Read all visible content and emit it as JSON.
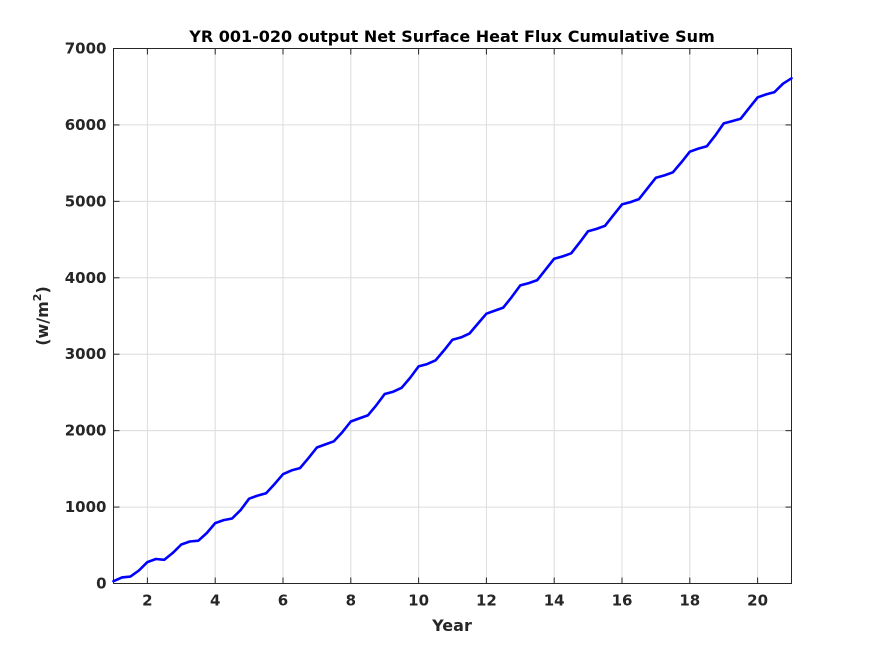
{
  "chart_data": {
    "type": "line",
    "title": "YR 001-020 output Net Surface Heat Flux  Cumulative Sum",
    "xlabel": "Year",
    "ylabel_base": "(w/m",
    "ylabel_sup": "2",
    "ylabel_close": ")",
    "xlim": [
      1,
      21
    ],
    "ylim": [
      0,
      7000
    ],
    "xticks": [
      2,
      4,
      6,
      8,
      10,
      12,
      14,
      16,
      18,
      20
    ],
    "yticks": [
      0,
      1000,
      2000,
      3000,
      4000,
      5000,
      6000,
      7000
    ],
    "grid": true,
    "series": [
      {
        "color": "#0000ff",
        "x": [
          1.0,
          1.25,
          1.5,
          1.75,
          2.0,
          2.25,
          2.5,
          2.75,
          3.0,
          3.25,
          3.5,
          3.75,
          4.0,
          4.25,
          4.5,
          4.75,
          5.0,
          5.25,
          5.5,
          5.75,
          6.0,
          6.25,
          6.5,
          6.75,
          7.0,
          7.25,
          7.5,
          7.75,
          8.0,
          8.25,
          8.5,
          8.75,
          9.0,
          9.25,
          9.5,
          9.75,
          10.0,
          10.25,
          10.5,
          10.75,
          11.0,
          11.25,
          11.5,
          11.75,
          12.0,
          12.25,
          12.5,
          12.75,
          13.0,
          13.25,
          13.5,
          13.75,
          14.0,
          14.25,
          14.5,
          14.75,
          15.0,
          15.25,
          15.5,
          15.75,
          16.0,
          16.25,
          16.5,
          16.75,
          17.0,
          17.25,
          17.5,
          17.75,
          18.0,
          18.25,
          18.5,
          18.75,
          19.0,
          19.25,
          19.5,
          19.75,
          20.0,
          20.25,
          20.5,
          20.75,
          21.0
        ],
        "y": [
          30,
          80,
          90,
          170,
          280,
          320,
          310,
          400,
          510,
          550,
          560,
          660,
          790,
          830,
          850,
          960,
          1110,
          1150,
          1180,
          1300,
          1430,
          1480,
          1510,
          1640,
          1780,
          1820,
          1860,
          1980,
          2120,
          2160,
          2200,
          2330,
          2480,
          2510,
          2560,
          2690,
          2840,
          2870,
          2920,
          3050,
          3190,
          3220,
          3270,
          3400,
          3530,
          3570,
          3610,
          3750,
          3900,
          3930,
          3970,
          4110,
          4250,
          4280,
          4320,
          4460,
          4610,
          4640,
          4680,
          4820,
          4960,
          4990,
          5030,
          5170,
          5310,
          5340,
          5380,
          5510,
          5650,
          5690,
          5720,
          5860,
          6020,
          6050,
          6080,
          6220,
          6360,
          6400,
          6430,
          6540,
          6610
        ]
      }
    ]
  }
}
